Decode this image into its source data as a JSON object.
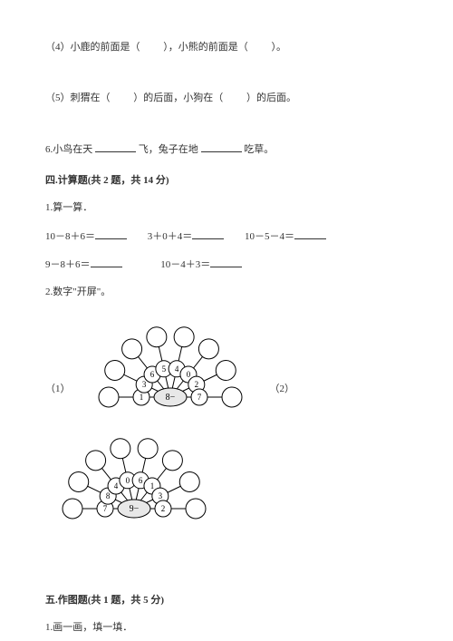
{
  "q4": {
    "prefix": "（4）小鹿的前面是（",
    "mid": "），小熊的前面是（",
    "suffix": "）。"
  },
  "q5": {
    "prefix": "（5）刺猬在（",
    "mid": "）的后面，小狗在（",
    "suffix": "）的后面。"
  },
  "q6": {
    "p1": "6.小鸟在天",
    "p2": "飞，兔子在地",
    "p3": "吃草。"
  },
  "section4": {
    "title": "四.计算题(共 2 题，共 14 分)",
    "sub1": "1.算一算．",
    "equations": [
      "10－8＋6＝",
      "3＋0＋4＝",
      "10－5－4＝",
      "9－8＋6＝",
      "10－4＋3＝"
    ],
    "sub2": "2.数字\"开屏\"。",
    "label1": "（1）",
    "label2": "（2）",
    "fan1": {
      "center": "8−",
      "inner": [
        "1",
        "3",
        "6",
        "5",
        "4",
        "0",
        "2",
        "7"
      ],
      "circle_fill": "#ffffff",
      "stroke": "#000000",
      "center_fill": "#e8e8e8"
    },
    "fan2": {
      "center": "9−",
      "inner": [
        "7",
        "8",
        "4",
        "0",
        "6",
        "1",
        "3",
        "2"
      ],
      "circle_fill": "#ffffff",
      "stroke": "#000000",
      "center_fill": "#e8e8e8"
    }
  },
  "section5": {
    "title": "五.作图题(共 1 题，共 5 分)",
    "sub1": "1.画一画，填一填．"
  },
  "colors": {
    "text": "#333333",
    "background": "#ffffff",
    "blank_line": "#333333"
  }
}
